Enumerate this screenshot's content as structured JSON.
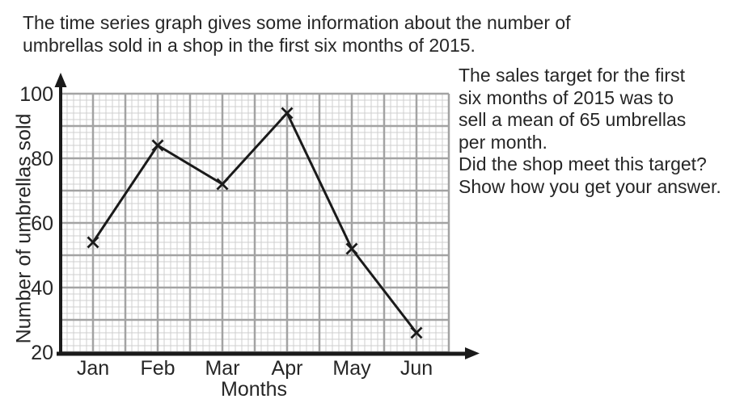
{
  "intro": {
    "lines": [
      "The time series graph gives some information about the number of",
      "umbrellas sold in a shop in the first six months of 2015."
    ]
  },
  "question": {
    "lines": [
      "The sales target for the first",
      "six months of 2015 was to",
      "sell a mean of 65 umbrellas",
      "per month.",
      "Did the shop meet this target?",
      "Show how you get your answer."
    ]
  },
  "chart_data": {
    "type": "line",
    "categories": [
      "Jan",
      "Feb",
      "Mar",
      "Apr",
      "May",
      "Jun"
    ],
    "values": [
      54,
      84,
      72,
      94,
      52,
      26
    ],
    "title": "",
    "xlabel": "Months",
    "ylabel": "Number of umbrellas sold",
    "ylim": [
      20,
      100
    ],
    "y_ticks": [
      20,
      40,
      60,
      80,
      100
    ],
    "marker": "x",
    "grid": true,
    "legend": "none",
    "line_color": "#1a1a1a",
    "axis_color": "#1a1a1a",
    "grid_major_color": "#a3a3a3",
    "grid_minor_color": "#cfcfcf",
    "text_color": "#262626"
  }
}
